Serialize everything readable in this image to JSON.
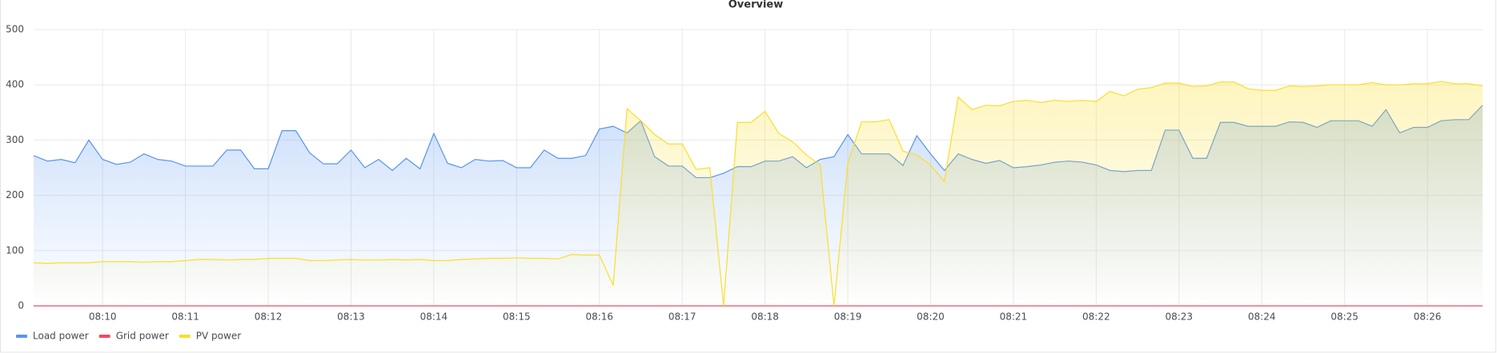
{
  "chart_data": {
    "type": "line",
    "title": "Overview",
    "categories": [
      null,
      null,
      null,
      null,
      null,
      "08:10",
      null,
      null,
      null,
      null,
      null,
      "08:11",
      null,
      null,
      null,
      null,
      null,
      "08:12",
      null,
      null,
      null,
      null,
      null,
      "08:13",
      null,
      null,
      null,
      null,
      null,
      "08:14",
      null,
      null,
      null,
      null,
      null,
      "08:15",
      null,
      null,
      null,
      null,
      null,
      "08:16",
      null,
      null,
      null,
      null,
      null,
      "08:17",
      null,
      null,
      null,
      null,
      null,
      "08:18",
      null,
      null,
      null,
      null,
      null,
      "08:19",
      null,
      null,
      null,
      null,
      null,
      "08:20",
      null,
      null,
      null,
      null,
      null,
      "08:21",
      null,
      null,
      null,
      null,
      null,
      "08:22",
      null,
      null,
      null,
      null,
      null,
      "08:23",
      null,
      null,
      null,
      null,
      null,
      "08:24",
      null,
      null,
      null,
      null,
      null,
      "08:25",
      null,
      null,
      null,
      null,
      null,
      "08:26",
      null,
      null,
      null,
      null
    ],
    "series": [
      {
        "name": "Load power",
        "color": "#5794f2",
        "values": [
          272,
          262,
          265,
          259,
          300,
          265,
          256,
          260,
          275,
          265,
          262,
          253,
          253,
          253,
          282,
          282,
          248,
          248,
          317,
          317,
          277,
          257,
          257,
          282,
          250,
          265,
          245,
          267,
          248,
          312,
          258,
          250,
          265,
          262,
          263,
          250,
          250,
          282,
          267,
          267,
          272,
          320,
          325,
          313,
          335,
          270,
          253,
          253,
          232,
          232,
          240,
          252,
          252,
          262,
          262,
          270,
          250,
          265,
          270,
          310,
          275,
          275,
          275,
          254,
          308,
          275,
          245,
          275,
          265,
          258,
          263,
          250,
          252,
          255,
          260,
          262,
          260,
          255,
          245,
          243,
          245,
          245,
          318,
          318,
          267,
          267,
          332,
          332,
          325,
          325,
          325,
          333,
          332,
          323,
          335,
          335,
          335,
          325,
          355,
          313,
          323,
          323,
          335,
          337,
          337,
          363
        ]
      },
      {
        "name": "Grid power",
        "color": "#f2495c",
        "values": [
          0,
          0,
          0,
          0,
          0,
          0,
          0,
          0,
          0,
          0,
          0,
          0,
          0,
          0,
          0,
          0,
          0,
          0,
          0,
          0,
          0,
          0,
          0,
          0,
          0,
          0,
          0,
          0,
          0,
          0,
          0,
          0,
          0,
          0,
          0,
          0,
          0,
          0,
          0,
          0,
          0,
          0,
          0,
          0,
          0,
          0,
          0,
          0,
          0,
          0,
          0,
          0,
          0,
          0,
          0,
          0,
          0,
          0,
          0,
          0,
          0,
          0,
          0,
          0,
          0,
          0,
          0,
          0,
          0,
          0,
          0,
          0,
          0,
          0,
          0,
          0,
          0,
          0,
          0,
          0,
          0,
          0,
          0,
          0,
          0,
          0,
          0,
          0,
          0,
          0,
          0,
          0,
          0,
          0,
          0,
          0,
          0,
          0,
          0,
          0,
          0,
          0,
          0,
          0,
          0,
          0
        ]
      },
      {
        "name": "PV power",
        "color": "#fade2a",
        "values": [
          78,
          77,
          78,
          78,
          78,
          80,
          80,
          80,
          79,
          80,
          80,
          82,
          84,
          84,
          83,
          84,
          84,
          86,
          86,
          86,
          82,
          82,
          83,
          84,
          83,
          83,
          84,
          83,
          84,
          82,
          82,
          84,
          85,
          86,
          86,
          87,
          86,
          86,
          85,
          93,
          92,
          92,
          37,
          357,
          335,
          310,
          293,
          293,
          247,
          250,
          0,
          332,
          332,
          352,
          312,
          297,
          273,
          255,
          0,
          258,
          333,
          333,
          337,
          280,
          273,
          255,
          225,
          378,
          355,
          363,
          362,
          370,
          372,
          368,
          372,
          370,
          372,
          370,
          388,
          380,
          392,
          395,
          403,
          403,
          397,
          398,
          405,
          405,
          393,
          390,
          390,
          398,
          397,
          398,
          400,
          400,
          400,
          404,
          400,
          400,
          402,
          402,
          406,
          402,
          402,
          398
        ]
      }
    ],
    "ylim": [
      0,
      500
    ],
    "yticks": [
      0,
      100,
      200,
      300,
      400,
      500
    ],
    "grid": true,
    "legend": "bottom-left"
  }
}
